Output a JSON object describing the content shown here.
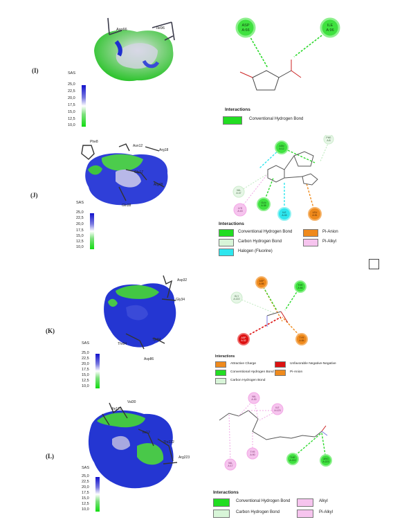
{
  "panels": [
    {
      "label": "(I)",
      "scale": {
        "title": "SAS",
        "ticks": [
          "25,0",
          "22,5",
          "20,0",
          "17,5",
          "15,0",
          "12,5",
          "10,0"
        ]
      },
      "residue_labels": [
        "Asp66",
        "Ile96"
      ],
      "nodes": [
        {
          "name": "ASP",
          "id": "A:66"
        },
        {
          "name": "ILE",
          "id": "A:96"
        }
      ],
      "legend_title": "Interactions",
      "legend": [
        {
          "label": "Conventional Hydrogen Bond",
          "color": "#22dd22"
        }
      ]
    },
    {
      "label": "(J)",
      "scale": {
        "title": "SAS",
        "ticks": [
          "25,0",
          "22,5",
          "20,0",
          "17,5",
          "15,0",
          "12,5",
          "10,0"
        ]
      },
      "residue_labels": [
        "Phe8",
        "Asn12",
        "Arg18",
        "Gly17",
        "Arg48",
        "Gln38"
      ],
      "nodes": [
        {
          "name": "ASN",
          "id": "A:12"
        },
        {
          "name": "PHE",
          "id": "A:8"
        },
        {
          "name": "VAL",
          "id": "A:47"
        },
        {
          "name": "LYS",
          "id": "A:15"
        },
        {
          "name": "GLN",
          "id": "A:38"
        },
        {
          "name": "ILE",
          "id": "A:43"
        },
        {
          "name": "LEU",
          "id": "A:51"
        }
      ],
      "legend_title": "Interactions",
      "legend": [
        {
          "label": "Conventional Hydrogen Bond",
          "color": "#22dd22"
        },
        {
          "label": "Pi-Anion",
          "color": "#ef8a1c"
        },
        {
          "label": "Carbon Hydrogen Bond",
          "color": "#d8f5d8"
        },
        {
          "label": "Pi-Alkyl",
          "color": "#f6c4ee"
        },
        {
          "label": "Halogen (Fluorine)",
          "color": "#2ee6ee"
        }
      ]
    },
    {
      "label": "(K)",
      "scale": {
        "title": "SAS",
        "ticks": [
          "25,0",
          "22,5",
          "20,0",
          "17,5",
          "15,0",
          "12,5",
          "10,0"
        ]
      },
      "residue_labels": [
        "Asp32",
        "Gly34",
        "Thr84",
        "Tyr84",
        "Asp86"
      ],
      "nodes": [
        {
          "name": "ASP",
          "id": "A:86"
        },
        {
          "name": "THR",
          "id": "A:84"
        },
        {
          "name": "GLY",
          "id": "A:222"
        },
        {
          "name": "ASP",
          "id": "A:32"
        },
        {
          "name": "TYR",
          "id": "A:84"
        }
      ],
      "legend_title": "Interactions",
      "legend": [
        {
          "label": "Attractive Charge",
          "color": "#ef8a1c"
        },
        {
          "label": "Unfavorable Negative-Negative",
          "color": "#dd1111"
        },
        {
          "label": "Conventional Hydrogen Bond",
          "color": "#22dd22"
        },
        {
          "label": "Pi-Anion",
          "color": "#ef8a1c"
        },
        {
          "label": "Carbon Hydrogen Bond",
          "color": "#d8f5d8"
        }
      ]
    },
    {
      "label": "(L)",
      "scale": {
        "title": "SAS",
        "ticks": [
          "25,0",
          "22,5",
          "20,0",
          "17,5",
          "15,0",
          "12,5",
          "10,0"
        ]
      },
      "residue_labels": [
        "Val30",
        "Ile123",
        "Ile12",
        "Thr222",
        "Arg223"
      ],
      "nodes": [
        {
          "name": "VAL",
          "id": "A:30"
        },
        {
          "name": "ILE",
          "id": "A:123"
        },
        {
          "name": "TYR",
          "id": "A:90"
        },
        {
          "name": "VAL",
          "id": "A:17"
        },
        {
          "name": "THR",
          "id": "A:222"
        },
        {
          "name": "ARG",
          "id": "A:223"
        }
      ],
      "legend_title": "Interactions",
      "legend": [
        {
          "label": "Conventional Hydrogen Bond",
          "color": "#22dd22"
        },
        {
          "label": "Alkyl",
          "color": "#f6c4ee"
        },
        {
          "label": "Carbon Hydrogen Bond",
          "color": "#d8f5d8"
        },
        {
          "label": "Pi-Alkyl",
          "color": "#f6c4ee"
        }
      ]
    }
  ]
}
